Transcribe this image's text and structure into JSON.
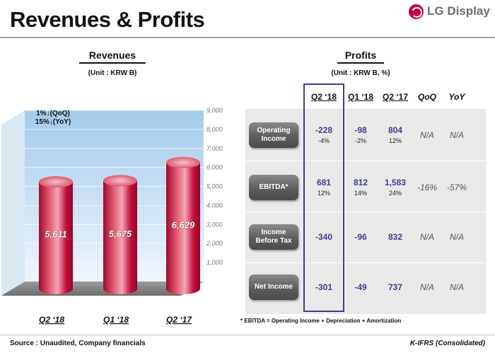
{
  "header": {
    "title": "Revenues & Profits",
    "logo_text": "LG Display"
  },
  "revenues": {
    "title": "Revenues",
    "unit": "(Unit : KRW B)",
    "change_lines": [
      "1%↓(QoQ)",
      "15%↓(YoY)"
    ]
  },
  "profits": {
    "title": "Profits",
    "unit": "(Unit : KRW B, %)",
    "columns": [
      "Q2 ‘18",
      "Q1 ‘18",
      "Q2 ‘17",
      "QoQ",
      "YoY"
    ],
    "rows": [
      {
        "label": "Operating\nIncome",
        "cells": [
          {
            "value": "-228",
            "pct": "-4%"
          },
          {
            "value": "-98",
            "pct": "-2%"
          },
          {
            "value": "804",
            "pct": "12%"
          },
          {
            "value": "N/A",
            "pct": ""
          },
          {
            "value": "N/A",
            "pct": ""
          }
        ]
      },
      {
        "label": "EBITDA*",
        "cells": [
          {
            "value": "681",
            "pct": "12%"
          },
          {
            "value": "812",
            "pct": "14%"
          },
          {
            "value": "1,583",
            "pct": "24%"
          },
          {
            "value": "-16%",
            "pct": ""
          },
          {
            "value": "-57%",
            "pct": ""
          }
        ]
      },
      {
        "label": "Income\nBefore Tax",
        "cells": [
          {
            "value": "-340",
            "pct": ""
          },
          {
            "value": "-96",
            "pct": ""
          },
          {
            "value": "832",
            "pct": ""
          },
          {
            "value": "N/A",
            "pct": ""
          },
          {
            "value": "N/A",
            "pct": ""
          }
        ]
      },
      {
        "label": "Net Income",
        "cells": [
          {
            "value": "-301",
            "pct": ""
          },
          {
            "value": "-49",
            "pct": ""
          },
          {
            "value": "737",
            "pct": ""
          },
          {
            "value": "N/A",
            "pct": ""
          },
          {
            "value": "N/A",
            "pct": ""
          }
        ]
      }
    ],
    "footnote": "* EBITDA = Operating Income + Depreciation + Amortization"
  },
  "footer": {
    "source": "Source : Unaudited, Company financials",
    "standard": "K-IFRS (Consolidated)"
  },
  "chart_data": {
    "type": "bar",
    "title": "Revenues",
    "categories": [
      "Q2 ‘18",
      "Q1 ‘18",
      "Q2 ‘17"
    ],
    "values": [
      5611,
      5675,
      6629
    ],
    "value_labels": [
      "5,611",
      "5,675",
      "6,629"
    ],
    "ylim": [
      0,
      9000
    ],
    "yticks": [
      1000,
      2000,
      3000,
      4000,
      5000,
      6000,
      7000,
      8000,
      9000
    ],
    "ytick_labels": [
      "1,000",
      "2,000",
      "3,000",
      "4,000",
      "5,000",
      "6,000",
      "7,000",
      "8,000",
      "9,000"
    ],
    "xlabel": "",
    "ylabel": "",
    "colors": {
      "bar": "#c6103d",
      "bar_light": "#f3a7b8",
      "wall_top": "#a4cbeb",
      "wall_bottom": "#eef5fc"
    }
  }
}
